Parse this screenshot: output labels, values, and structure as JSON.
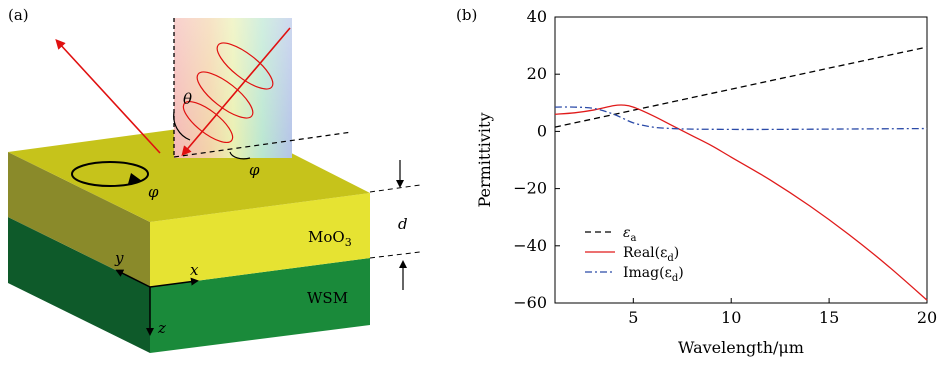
{
  "panel_a": {
    "label": "(a)",
    "top_layer": "MoO",
    "top_layer_sub": "3",
    "bottom_layer": "WSM",
    "thickness": "d",
    "angle_theta": "θ",
    "angle_phi_surface": "φ",
    "angle_phi_plane": "φ",
    "axis_x": "x",
    "axis_y": "y",
    "axis_z": "z",
    "colors": {
      "moo3_top": "#c6c31b",
      "moo3_front": "#e6e332",
      "moo3_side": "#8a8a2a",
      "wsm_front": "#1a8a3a",
      "wsm_side": "#0e5a2a",
      "beam": "#e01010"
    }
  },
  "chart_data": {
    "panel_label": "(b)",
    "type": "line",
    "xlabel": "Wavelength/μm",
    "ylabel": "Permittivity",
    "xlim": [
      1,
      20
    ],
    "ylim": [
      -60,
      40
    ],
    "xticks": [
      5,
      10,
      15,
      20
    ],
    "yticks": [
      40,
      20,
      0,
      -20,
      -40,
      -60
    ],
    "grid": false,
    "legend_position": "bottom-left",
    "series": [
      {
        "name": "εa",
        "legend_main": "ε",
        "legend_sub": "a",
        "style": "dashed",
        "color": "#000000",
        "x": [
          1,
          20
        ],
        "y": [
          1.5,
          29.5
        ]
      },
      {
        "name": "Real(εd)",
        "legend_main": "Real(ε",
        "legend_sub": "d",
        "legend_close": ")",
        "style": "solid",
        "color": "#e01b1b",
        "x": [
          1,
          2,
          3,
          4,
          4.5,
          5,
          6,
          7,
          8,
          9,
          10,
          12,
          14,
          16,
          18,
          20
        ],
        "y": [
          6,
          6.5,
          7.5,
          9,
          9.2,
          8.5,
          5.5,
          2,
          -1.5,
          -5,
          -9,
          -17,
          -26,
          -36,
          -47,
          -59
        ]
      },
      {
        "name": "Imag(εd)",
        "legend_main": "Imag(ε",
        "legend_sub": "d",
        "legend_close": ")",
        "style": "dashdot",
        "color": "#2a4aa8",
        "x": [
          1,
          2,
          3,
          4,
          5,
          6,
          7,
          8,
          10,
          12,
          15,
          20
        ],
        "y": [
          8.5,
          8.5,
          8,
          6,
          3,
          1.5,
          1,
          0.8,
          0.7,
          0.7,
          0.8,
          1
        ]
      }
    ]
  }
}
